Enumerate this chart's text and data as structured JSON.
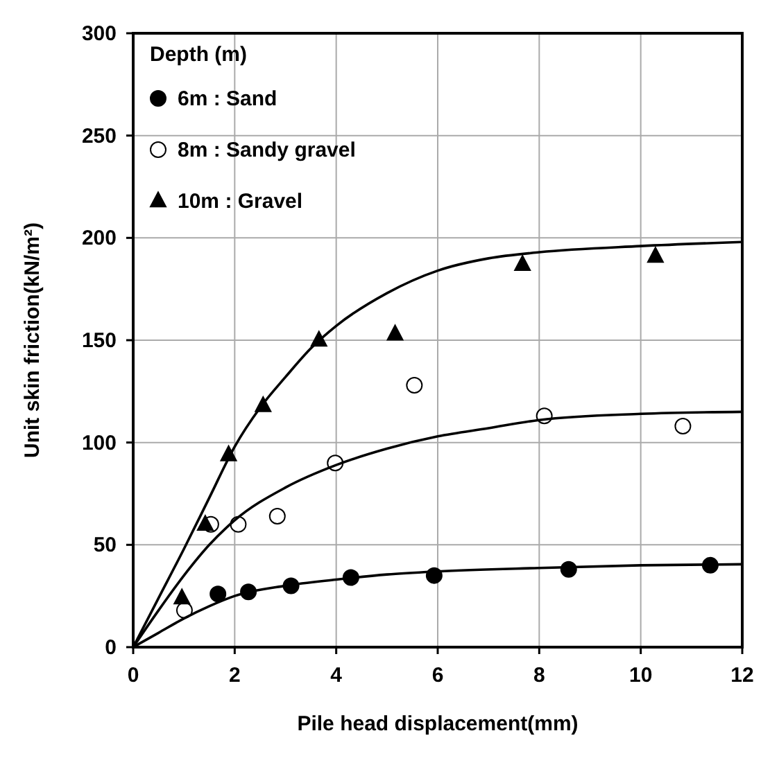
{
  "chart_data": {
    "type": "scatter",
    "xlabel": "Pile head displacement(mm)",
    "ylabel": "Unit skin friction(kN/m²)",
    "legend_title": "Depth (m)",
    "legend": "top left",
    "grid": true,
    "xlim": [
      0,
      12
    ],
    "xticks": [
      0,
      2,
      4,
      6,
      8,
      10,
      12
    ],
    "ylim": [
      0,
      300
    ],
    "yticks": [
      0,
      50,
      100,
      150,
      200,
      250,
      300
    ],
    "series": [
      {
        "name": "6m : Sand",
        "marker": "circle",
        "color": "#000000",
        "x": [
          1.67,
          2.27,
          3.11,
          4.29,
          5.93,
          8.58,
          11.37
        ],
        "values": [
          26,
          27,
          30,
          34,
          35,
          38,
          40
        ]
      },
      {
        "name": "8m : Sandy gravel",
        "marker": "circle",
        "color": "#ffffff",
        "x": [
          1.01,
          1.53,
          2.07,
          2.84,
          3.98,
          5.54,
          8.1,
          10.83
        ],
        "values": [
          18,
          60,
          60,
          64,
          90,
          128,
          113,
          108
        ]
      },
      {
        "name": "10m : Gravel",
        "marker": "triangle",
        "color": "#000000",
        "x": [
          0.96,
          1.42,
          1.88,
          2.56,
          3.66,
          5.16,
          7.67,
          10.29
        ],
        "values": [
          24,
          60,
          94,
          118,
          150,
          153,
          187,
          191
        ]
      },
      {
        "type": "line",
        "marker": "none",
        "color": "#000000",
        "x": [
          0,
          0.5,
          1,
          1.5,
          2,
          3,
          4,
          5,
          6,
          8,
          10,
          12
        ],
        "values": [
          0,
          7,
          14,
          20,
          25,
          30,
          33,
          35.5,
          37,
          38.7,
          40,
          40.5
        ]
      },
      {
        "type": "line",
        "marker": "none",
        "color": "#000000",
        "x": [
          0,
          0.5,
          1,
          1.5,
          2,
          3,
          4,
          5,
          6,
          7,
          8,
          10,
          12
        ],
        "values": [
          0,
          18,
          35,
          50,
          62,
          78,
          89,
          97,
          103,
          107,
          111,
          114,
          115
        ]
      },
      {
        "type": "line",
        "marker": "none",
        "color": "#000000",
        "x": [
          0,
          0.5,
          1,
          1.5,
          2,
          2.5,
          3,
          3.5,
          4,
          5,
          6,
          7,
          8,
          10,
          12
        ],
        "values": [
          0,
          24,
          48,
          73,
          98,
          117,
          132,
          146,
          157,
          173,
          184,
          190,
          193,
          196,
          198
        ]
      }
    ]
  }
}
